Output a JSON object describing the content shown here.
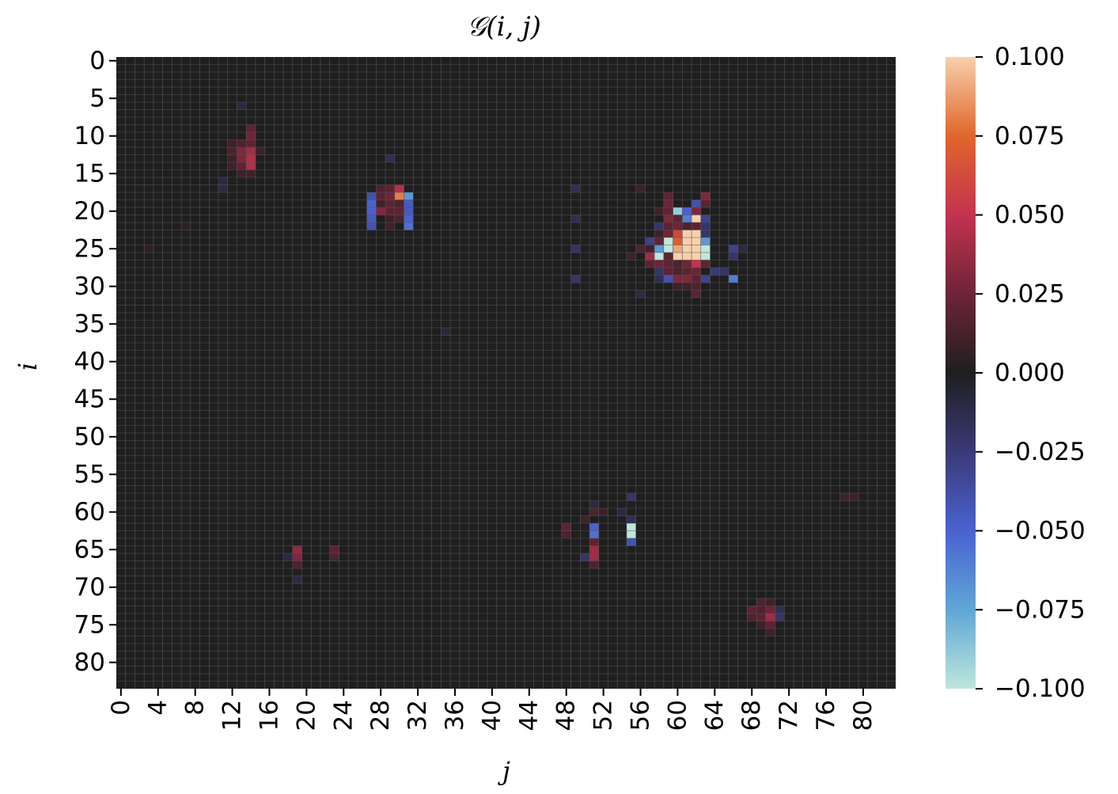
{
  "chart_data": {
    "type": "heatmap",
    "title": "𝒢(i, j)",
    "xlabel": "j",
    "ylabel": "i",
    "rows": 84,
    "cols": 84,
    "x_tick_step": 4,
    "y_tick_step": 5,
    "x_ticks": [
      "0",
      "4",
      "8",
      "12",
      "16",
      "20",
      "24",
      "28",
      "32",
      "36",
      "40",
      "44",
      "48",
      "52",
      "56",
      "60",
      "64",
      "68",
      "72",
      "76",
      "80"
    ],
    "y_ticks": [
      "0",
      "5",
      "10",
      "15",
      "20",
      "25",
      "30",
      "35",
      "40",
      "45",
      "50",
      "55",
      "60",
      "65",
      "70",
      "75",
      "80"
    ],
    "vmin": -0.1,
    "vmax": 0.1,
    "background_value": 0.0,
    "colorbar_ticks": [
      "0.100",
      "0.075",
      "0.050",
      "0.025",
      "0.000",
      "−0.025",
      "−0.050",
      "−0.075",
      "−0.100"
    ],
    "colorbar_tick_values": [
      0.1,
      0.075,
      0.05,
      0.025,
      0.0,
      -0.025,
      -0.05,
      -0.075,
      -0.1
    ],
    "colormap": "icefire",
    "colormap_stops": [
      {
        "v": -0.1,
        "color": "#bde7db"
      },
      {
        "v": -0.075,
        "color": "#5fa6d6"
      },
      {
        "v": -0.05,
        "color": "#4a62d0"
      },
      {
        "v": -0.025,
        "color": "#3a3a78"
      },
      {
        "v": 0.0,
        "color": "#1f1f1f"
      },
      {
        "v": 0.025,
        "color": "#6e2438"
      },
      {
        "v": 0.05,
        "color": "#c4324f"
      },
      {
        "v": 0.075,
        "color": "#e0662c"
      },
      {
        "v": 0.1,
        "color": "#f7d0ac"
      }
    ],
    "grid": true,
    "cells": [
      {
        "i": 6,
        "j": 13,
        "v": -0.01
      },
      {
        "i": 9,
        "j": 14,
        "v": 0.02
      },
      {
        "i": 10,
        "j": 14,
        "v": 0.025
      },
      {
        "i": 11,
        "j": 12,
        "v": 0.01
      },
      {
        "i": 11,
        "j": 13,
        "v": 0.015
      },
      {
        "i": 11,
        "j": 14,
        "v": 0.02
      },
      {
        "i": 12,
        "j": 12,
        "v": 0.015
      },
      {
        "i": 12,
        "j": 13,
        "v": 0.03
      },
      {
        "i": 12,
        "j": 14,
        "v": 0.04
      },
      {
        "i": 12,
        "j": 15,
        "v": 0.01
      },
      {
        "i": 13,
        "j": 12,
        "v": 0.01
      },
      {
        "i": 13,
        "j": 13,
        "v": 0.03
      },
      {
        "i": 13,
        "j": 14,
        "v": 0.045
      },
      {
        "i": 14,
        "j": 12,
        "v": 0.01
      },
      {
        "i": 14,
        "j": 13,
        "v": 0.02
      },
      {
        "i": 14,
        "j": 14,
        "v": 0.045
      },
      {
        "i": 15,
        "j": 13,
        "v": 0.01
      },
      {
        "i": 15,
        "j": 14,
        "v": 0.01
      },
      {
        "i": 16,
        "j": 11,
        "v": -0.01
      },
      {
        "i": 17,
        "j": 11,
        "v": -0.01
      },
      {
        "i": 13,
        "j": 29,
        "v": -0.015
      },
      {
        "i": 17,
        "j": 28,
        "v": 0.015
      },
      {
        "i": 17,
        "j": 29,
        "v": 0.02
      },
      {
        "i": 17,
        "j": 30,
        "v": 0.045
      },
      {
        "i": 18,
        "j": 27,
        "v": -0.04
      },
      {
        "i": 18,
        "j": 28,
        "v": 0.02
      },
      {
        "i": 18,
        "j": 29,
        "v": 0.025
      },
      {
        "i": 18,
        "j": 30,
        "v": 0.08
      },
      {
        "i": 18,
        "j": 31,
        "v": -0.07
      },
      {
        "i": 19,
        "j": 27,
        "v": -0.05
      },
      {
        "i": 19,
        "j": 28,
        "v": 0.01
      },
      {
        "i": 19,
        "j": 29,
        "v": 0.02
      },
      {
        "i": 19,
        "j": 30,
        "v": 0.015
      },
      {
        "i": 19,
        "j": 31,
        "v": -0.045
      },
      {
        "i": 20,
        "j": 27,
        "v": -0.05
      },
      {
        "i": 20,
        "j": 28,
        "v": 0.03
      },
      {
        "i": 20,
        "j": 29,
        "v": 0.02
      },
      {
        "i": 20,
        "j": 30,
        "v": 0.02
      },
      {
        "i": 20,
        "j": 31,
        "v": -0.045
      },
      {
        "i": 21,
        "j": 27,
        "v": -0.045
      },
      {
        "i": 21,
        "j": 29,
        "v": 0.01
      },
      {
        "i": 21,
        "j": 30,
        "v": 0.015
      },
      {
        "i": 21,
        "j": 31,
        "v": -0.05
      },
      {
        "i": 22,
        "j": 27,
        "v": -0.04
      },
      {
        "i": 22,
        "j": 29,
        "v": 0.01
      },
      {
        "i": 22,
        "j": 31,
        "v": -0.055
      },
      {
        "i": 22,
        "j": 7,
        "v": 0.005
      },
      {
        "i": 25,
        "j": 3,
        "v": 0.005
      },
      {
        "i": 17,
        "j": 49,
        "v": -0.015
      },
      {
        "i": 21,
        "j": 49,
        "v": -0.015
      },
      {
        "i": 25,
        "j": 49,
        "v": -0.02
      },
      {
        "i": 29,
        "j": 49,
        "v": -0.02
      },
      {
        "i": 17,
        "j": 56,
        "v": 0.01
      },
      {
        "i": 18,
        "j": 59,
        "v": 0.02
      },
      {
        "i": 18,
        "j": 63,
        "v": 0.03
      },
      {
        "i": 19,
        "j": 59,
        "v": 0.025
      },
      {
        "i": 19,
        "j": 62,
        "v": -0.04
      },
      {
        "i": 19,
        "j": 63,
        "v": 0.02
      },
      {
        "i": 20,
        "j": 58,
        "v": 0.01
      },
      {
        "i": 20,
        "j": 59,
        "v": 0.02
      },
      {
        "i": 20,
        "j": 60,
        "v": -0.09
      },
      {
        "i": 20,
        "j": 61,
        "v": -0.05
      },
      {
        "i": 20,
        "j": 62,
        "v": 0.03
      },
      {
        "i": 21,
        "j": 59,
        "v": 0.03
      },
      {
        "i": 21,
        "j": 60,
        "v": 0.02
      },
      {
        "i": 21,
        "j": 61,
        "v": -0.06
      },
      {
        "i": 21,
        "j": 62,
        "v": 0.1
      },
      {
        "i": 21,
        "j": 63,
        "v": -0.03
      },
      {
        "i": 22,
        "j": 58,
        "v": -0.02
      },
      {
        "i": 22,
        "j": 59,
        "v": 0.02
      },
      {
        "i": 22,
        "j": 60,
        "v": 0.025
      },
      {
        "i": 22,
        "j": 61,
        "v": 0.015
      },
      {
        "i": 22,
        "j": 62,
        "v": 0.02
      },
      {
        "i": 22,
        "j": 63,
        "v": -0.02
      },
      {
        "i": 23,
        "j": 58,
        "v": 0.01
      },
      {
        "i": 23,
        "j": 59,
        "v": 0.025
      },
      {
        "i": 23,
        "j": 60,
        "v": 0.06
      },
      {
        "i": 23,
        "j": 61,
        "v": 0.1
      },
      {
        "i": 23,
        "j": 62,
        "v": 0.1
      },
      {
        "i": 23,
        "j": 63,
        "v": -0.02
      },
      {
        "i": 24,
        "j": 57,
        "v": -0.03
      },
      {
        "i": 24,
        "j": 58,
        "v": 0.02
      },
      {
        "i": 24,
        "j": 59,
        "v": -0.1
      },
      {
        "i": 24,
        "j": 60,
        "v": 0.07
      },
      {
        "i": 24,
        "j": 61,
        "v": 0.1
      },
      {
        "i": 24,
        "j": 62,
        "v": 0.1
      },
      {
        "i": 24,
        "j": 63,
        "v": -0.07
      },
      {
        "i": 25,
        "j": 56,
        "v": 0.015
      },
      {
        "i": 25,
        "j": 57,
        "v": 0.01
      },
      {
        "i": 25,
        "j": 58,
        "v": -0.07
      },
      {
        "i": 25,
        "j": 59,
        "v": -0.1
      },
      {
        "i": 25,
        "j": 60,
        "v": 0.09
      },
      {
        "i": 25,
        "j": 61,
        "v": 0.1
      },
      {
        "i": 25,
        "j": 62,
        "v": 0.1
      },
      {
        "i": 25,
        "j": 63,
        "v": -0.1
      },
      {
        "i": 25,
        "j": 66,
        "v": -0.03
      },
      {
        "i": 25,
        "j": 67,
        "v": -0.01
      },
      {
        "i": 26,
        "j": 55,
        "v": 0.01
      },
      {
        "i": 26,
        "j": 57,
        "v": 0.04
      },
      {
        "i": 26,
        "j": 58,
        "v": -0.1
      },
      {
        "i": 26,
        "j": 59,
        "v": 0.02
      },
      {
        "i": 26,
        "j": 60,
        "v": 0.1
      },
      {
        "i": 26,
        "j": 61,
        "v": 0.1
      },
      {
        "i": 26,
        "j": 62,
        "v": 0.1
      },
      {
        "i": 26,
        "j": 63,
        "v": -0.1
      },
      {
        "i": 26,
        "j": 66,
        "v": -0.02
      },
      {
        "i": 27,
        "j": 57,
        "v": 0.02
      },
      {
        "i": 27,
        "j": 58,
        "v": 0.025
      },
      {
        "i": 27,
        "j": 59,
        "v": 0.02
      },
      {
        "i": 27,
        "j": 60,
        "v": 0.015
      },
      {
        "i": 27,
        "j": 61,
        "v": 0.025
      },
      {
        "i": 27,
        "j": 62,
        "v": 0.05
      },
      {
        "i": 27,
        "j": 63,
        "v": 0.02
      },
      {
        "i": 28,
        "j": 58,
        "v": -0.02
      },
      {
        "i": 28,
        "j": 59,
        "v": 0.02
      },
      {
        "i": 28,
        "j": 60,
        "v": 0.015
      },
      {
        "i": 28,
        "j": 61,
        "v": 0.02
      },
      {
        "i": 28,
        "j": 62,
        "v": 0.025
      },
      {
        "i": 28,
        "j": 64,
        "v": -0.025
      },
      {
        "i": 28,
        "j": 65,
        "v": -0.02
      },
      {
        "i": 29,
        "j": 58,
        "v": -0.015
      },
      {
        "i": 29,
        "j": 59,
        "v": -0.04
      },
      {
        "i": 29,
        "j": 60,
        "v": 0.03
      },
      {
        "i": 29,
        "j": 61,
        "v": 0.03
      },
      {
        "i": 29,
        "j": 62,
        "v": 0.02
      },
      {
        "i": 29,
        "j": 63,
        "v": -0.03
      },
      {
        "i": 29,
        "j": 66,
        "v": -0.06
      },
      {
        "i": 30,
        "j": 60,
        "v": 0.01
      },
      {
        "i": 30,
        "j": 61,
        "v": 0.01
      },
      {
        "i": 30,
        "j": 62,
        "v": 0.015
      },
      {
        "i": 31,
        "j": 56,
        "v": -0.01
      },
      {
        "i": 31,
        "j": 62,
        "v": 0.02
      },
      {
        "i": 36,
        "j": 35,
        "v": -0.008
      },
      {
        "i": 58,
        "j": 55,
        "v": -0.02
      },
      {
        "i": 59,
        "j": 51,
        "v": -0.01
      },
      {
        "i": 60,
        "j": 51,
        "v": 0.015
      },
      {
        "i": 60,
        "j": 52,
        "v": 0.01
      },
      {
        "i": 60,
        "j": 54,
        "v": -0.01
      },
      {
        "i": 61,
        "j": 50,
        "v": 0.01
      },
      {
        "i": 61,
        "j": 55,
        "v": -0.015
      },
      {
        "i": 62,
        "j": 48,
        "v": 0.02
      },
      {
        "i": 62,
        "j": 51,
        "v": -0.05
      },
      {
        "i": 62,
        "j": 55,
        "v": -0.1
      },
      {
        "i": 63,
        "j": 48,
        "v": 0.015
      },
      {
        "i": 63,
        "j": 51,
        "v": -0.055
      },
      {
        "i": 63,
        "j": 55,
        "v": -0.1
      },
      {
        "i": 64,
        "j": 51,
        "v": 0.02
      },
      {
        "i": 64,
        "j": 55,
        "v": -0.04
      },
      {
        "i": 65,
        "j": 51,
        "v": 0.04
      },
      {
        "i": 65,
        "j": 19,
        "v": 0.035
      },
      {
        "i": 65,
        "j": 23,
        "v": 0.02
      },
      {
        "i": 66,
        "j": 50,
        "v": -0.02
      },
      {
        "i": 66,
        "j": 51,
        "v": 0.04
      },
      {
        "i": 66,
        "j": 19,
        "v": 0.03
      },
      {
        "i": 66,
        "j": 23,
        "v": 0.015
      },
      {
        "i": 66,
        "j": 18,
        "v": -0.01
      },
      {
        "i": 67,
        "j": 51,
        "v": 0.015
      },
      {
        "i": 67,
        "j": 19,
        "v": 0.015
      },
      {
        "i": 69,
        "j": 19,
        "v": -0.01
      },
      {
        "i": 58,
        "j": 78,
        "v": 0.01
      },
      {
        "i": 58,
        "j": 79,
        "v": 0.01
      },
      {
        "i": 72,
        "j": 69,
        "v": 0.015
      },
      {
        "i": 72,
        "j": 70,
        "v": 0.01
      },
      {
        "i": 73,
        "j": 68,
        "v": 0.02
      },
      {
        "i": 73,
        "j": 69,
        "v": 0.015
      },
      {
        "i": 73,
        "j": 70,
        "v": 0.025
      },
      {
        "i": 73,
        "j": 71,
        "v": -0.015
      },
      {
        "i": 74,
        "j": 68,
        "v": 0.015
      },
      {
        "i": 74,
        "j": 69,
        "v": 0.02
      },
      {
        "i": 74,
        "j": 70,
        "v": 0.04
      },
      {
        "i": 74,
        "j": 71,
        "v": -0.02
      },
      {
        "i": 75,
        "j": 69,
        "v": 0.01
      },
      {
        "i": 75,
        "j": 70,
        "v": 0.02
      },
      {
        "i": 76,
        "j": 70,
        "v": 0.01
      }
    ]
  }
}
